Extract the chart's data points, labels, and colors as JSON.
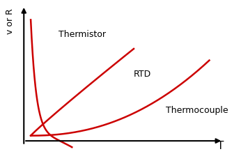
{
  "title": "",
  "xlabel": "T",
  "ylabel": "v or R",
  "curve_color": "#cc0000",
  "background_color": "#ffffff",
  "label_thermistor": "Thermistor",
  "label_rtd": "RTD",
  "label_thermocouple": "Thermocouple",
  "label_fontsize": 9,
  "axis_label_fontsize": 11,
  "lw": 1.8
}
